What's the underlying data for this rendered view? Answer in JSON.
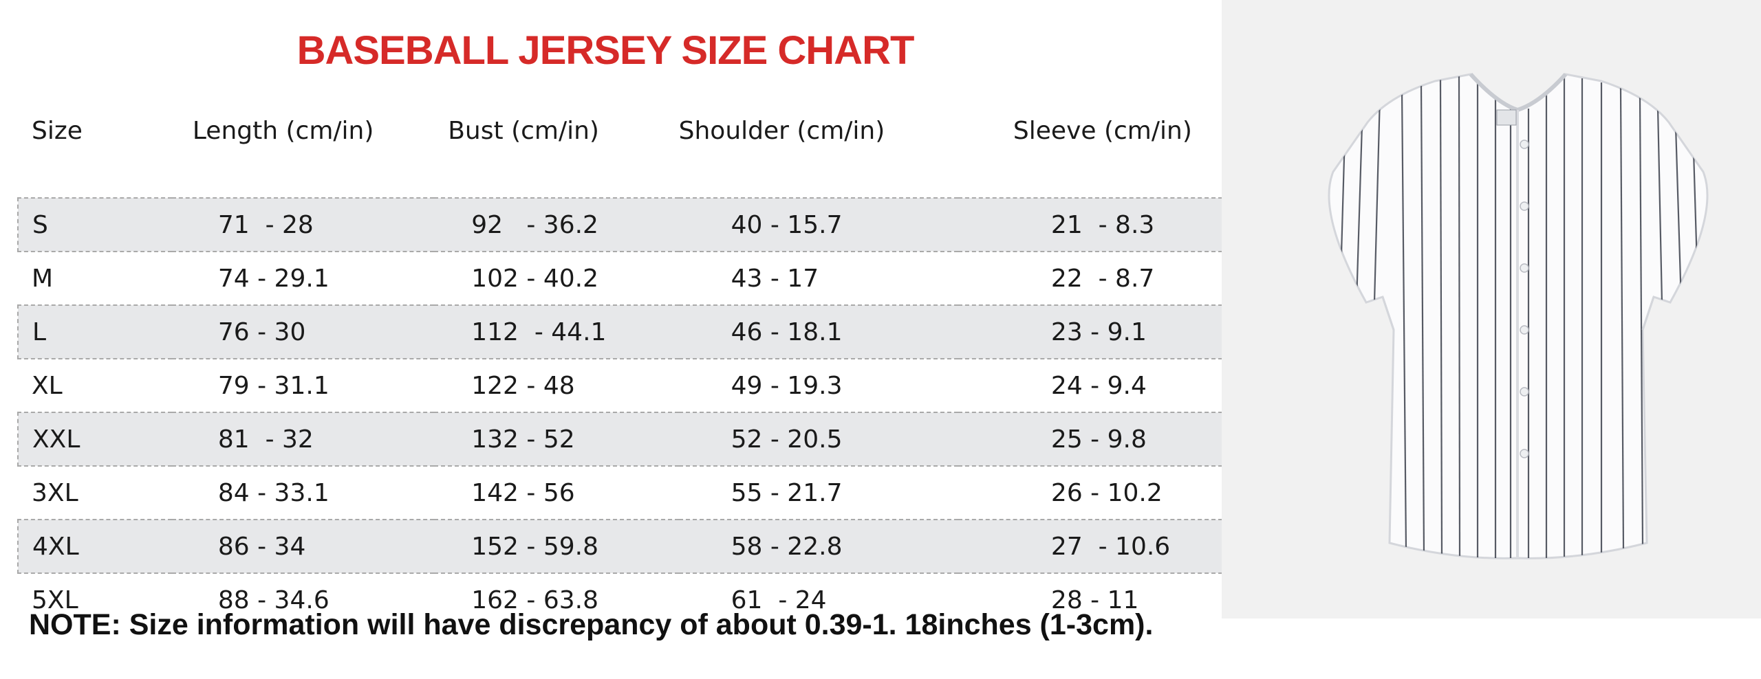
{
  "title": "BASEBALL JERSEY SIZE CHART",
  "table": {
    "headers": [
      "Size",
      "Length (cm/in)",
      "Bust (cm/in)",
      "Shoulder (cm/in)",
      "Sleeve (cm/in)"
    ],
    "rows": [
      [
        "S",
        "71  - 28",
        "92   - 36.2",
        "40 - 15.7",
        "21  - 8.3"
      ],
      [
        "M",
        "74 - 29.1",
        "102 - 40.2",
        "43 - 17",
        "22  - 8.7"
      ],
      [
        "L",
        "76 - 30",
        "112  - 44.1",
        "46 - 18.1",
        "23 - 9.1"
      ],
      [
        "XL",
        "79 - 31.1",
        "122 - 48",
        "49 - 19.3",
        "24 - 9.4"
      ],
      [
        "XXL",
        "81  - 32",
        "132 - 52",
        "52 - 20.5",
        "25 - 9.8"
      ],
      [
        "3XL",
        "84 - 33.1",
        "142 - 56",
        "55 - 21.7",
        "26 - 10.2"
      ],
      [
        "4XL",
        "86 - 34",
        "152 - 59.8",
        "58 - 22.8",
        "27  - 10.6"
      ],
      [
        "5XL",
        "88 - 34.6",
        "162 - 63.8",
        "61  - 24",
        "28 - 11"
      ]
    ]
  },
  "note": "NOTE: Size information will have discrepancy of about 0.39-1. 18inches (1-3cm).",
  "image": {
    "subject": "white-pinstripe-baseball-jersey",
    "background_color": "#f1f1f1",
    "stripe_color": "#3a3f4a"
  },
  "colors": {
    "title": "#d62a28",
    "shaded_row": "#e7e8ea"
  }
}
